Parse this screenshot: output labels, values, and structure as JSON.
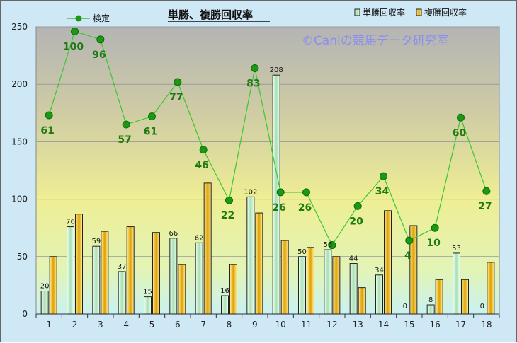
{
  "chart_data": {
    "type": "bar",
    "title": "単勝、複勝回収率",
    "watermark": "©Caniの競馬データ研究室",
    "categories": [
      "1",
      "2",
      "3",
      "4",
      "5",
      "6",
      "7",
      "8",
      "9",
      "10",
      "11",
      "12",
      "13",
      "14",
      "15",
      "16",
      "17",
      "18"
    ],
    "ylim": [
      0,
      250
    ],
    "yticks": [
      0,
      50,
      100,
      150,
      200,
      250
    ],
    "grid": true,
    "legend_position": "top-right",
    "series": [
      {
        "name": "単勝回収率",
        "kind": "bar",
        "color": "#bfe8c8",
        "values": [
          20,
          76,
          59,
          37,
          15,
          66,
          62,
          16,
          102,
          208,
          50,
          56,
          44,
          34,
          0,
          8,
          53,
          0
        ]
      },
      {
        "name": "複勝回収率",
        "kind": "bar",
        "color": "#e8a800",
        "values": [
          50,
          87,
          72,
          76,
          71,
          43,
          114,
          43,
          88,
          64,
          58,
          50,
          23,
          90,
          77,
          30,
          30,
          45
        ]
      },
      {
        "name": "検定",
        "kind": "line",
        "color": "#1a9a12",
        "values": [
          173,
          246,
          239,
          165,
          172,
          202,
          143,
          99,
          214,
          106,
          106,
          60,
          94,
          120,
          64,
          75,
          171,
          107
        ],
        "labels": [
          "61",
          "100",
          "96",
          "57",
          "61",
          "77",
          "46",
          "22",
          "83",
          "26",
          "26",
          "",
          "20",
          "34",
          "4",
          "10",
          "60",
          "27"
        ]
      }
    ]
  }
}
